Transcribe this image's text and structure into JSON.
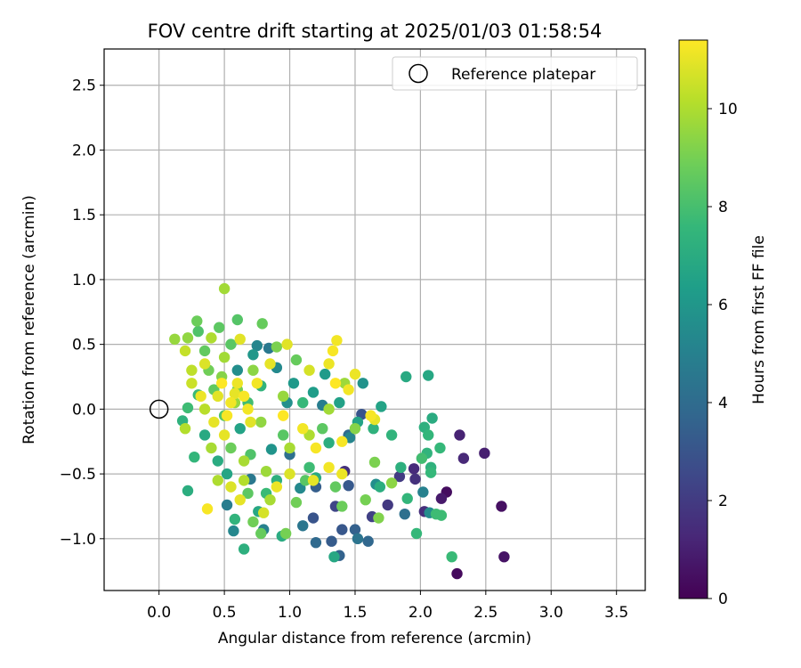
{
  "chart_data": {
    "type": "scatter",
    "title": "FOV centre drift starting at 2025/01/03 01:58:54",
    "xlabel": "Angular distance from reference (arcmin)",
    "ylabel": "Rotation from reference (arcmin)",
    "xlim": [
      -0.42,
      3.72
    ],
    "ylim": [
      -1.4,
      2.78
    ],
    "x_ticks": [
      0.0,
      0.5,
      1.0,
      1.5,
      2.0,
      2.5,
      3.0,
      3.5
    ],
    "x_tick_labels": [
      "0.0",
      "0.5",
      "1.0",
      "1.5",
      "2.0",
      "2.5",
      "3.0",
      "3.5"
    ],
    "y_ticks": [
      -1.0,
      -0.5,
      0.0,
      0.5,
      1.0,
      1.5,
      2.0,
      2.5
    ],
    "y_tick_labels": [
      "−1.0",
      "−0.5",
      "0.0",
      "0.5",
      "1.0",
      "1.5",
      "2.0",
      "2.5"
    ],
    "grid": true,
    "legend": {
      "position": "top-right",
      "entries": [
        "Reference platepar"
      ]
    },
    "reference_point": {
      "x": 0.0,
      "y": 0.0
    },
    "colorbar": {
      "label": "Hours from first FF file",
      "range": [
        0,
        11.4
      ],
      "ticks": [
        0,
        2,
        4,
        6,
        8,
        10
      ],
      "tick_labels": [
        "0",
        "2",
        "4",
        "6",
        "8",
        "10"
      ],
      "colormap": [
        "#440154",
        "#482878",
        "#3e4989",
        "#31688e",
        "#26828e",
        "#1f9e89",
        "#35b779",
        "#6ece58",
        "#b5de2b",
        "#fde725"
      ]
    },
    "series": [
      {
        "color_by": "hours",
        "points": [
          [
            2.28,
            -1.27,
            0.3
          ],
          [
            2.64,
            -1.14,
            0.6
          ],
          [
            2.62,
            -0.75,
            0.5
          ],
          [
            2.2,
            -0.64,
            0.4
          ],
          [
            2.16,
            -0.69,
            0.8
          ],
          [
            2.3,
            -0.2,
            1.1
          ],
          [
            2.49,
            -0.34,
            1.0
          ],
          [
            2.33,
            -0.38,
            1.3
          ],
          [
            1.95,
            -0.46,
            1.4
          ],
          [
            1.96,
            -0.54,
            1.6
          ],
          [
            2.03,
            -0.79,
            1.5
          ],
          [
            1.75,
            -0.74,
            1.9
          ],
          [
            1.84,
            -0.52,
            2.0
          ],
          [
            1.63,
            -0.83,
            2.2
          ],
          [
            1.42,
            -0.48,
            1.6
          ],
          [
            1.35,
            -0.75,
            2.4
          ],
          [
            1.5,
            -0.93,
            3.5
          ],
          [
            1.6,
            -1.02,
            3.8
          ],
          [
            1.4,
            -0.93,
            3.1
          ],
          [
            1.32,
            -1.02,
            3.3
          ],
          [
            1.2,
            -1.03,
            3.9
          ],
          [
            1.38,
            -1.13,
            3.6
          ],
          [
            1.18,
            -0.84,
            3.0
          ],
          [
            1.2,
            -0.6,
            3.4
          ],
          [
            1.45,
            -0.59,
            3.2
          ],
          [
            1.55,
            -0.04,
            3.0
          ],
          [
            1.45,
            -0.2,
            4.0
          ],
          [
            1.1,
            -0.9,
            4.5
          ],
          [
            1.52,
            -1.0,
            4.4
          ],
          [
            1.88,
            -0.81,
            4.2
          ],
          [
            2.02,
            -0.64,
            5.0
          ],
          [
            2.07,
            -0.8,
            5.5
          ],
          [
            1.66,
            -0.58,
            5.6
          ],
          [
            1.46,
            -0.22,
            5.2
          ],
          [
            1.56,
            0.2,
            5.8
          ],
          [
            1.25,
            0.03,
            4.8
          ],
          [
            1.0,
            -0.35,
            4.2
          ],
          [
            0.8,
            -0.93,
            5.0
          ],
          [
            0.57,
            -0.94,
            5.3
          ],
          [
            0.52,
            -0.74,
            4.8
          ],
          [
            0.7,
            -0.54,
            4.6
          ],
          [
            1.08,
            -0.61,
            5.4
          ],
          [
            0.86,
            -0.31,
            5.9
          ],
          [
            0.98,
            0.05,
            5.7
          ],
          [
            0.9,
            0.32,
            5.4
          ],
          [
            0.84,
            0.47,
            4.6
          ],
          [
            0.75,
            0.49,
            5.2
          ],
          [
            0.6,
            0.3,
            5.6
          ],
          [
            0.72,
            0.42,
            6.0
          ],
          [
            1.03,
            0.2,
            6.1
          ],
          [
            1.18,
            0.13,
            6.3
          ],
          [
            1.27,
            0.27,
            6.2
          ],
          [
            1.38,
            0.05,
            6.5
          ],
          [
            1.52,
            -0.1,
            6.6
          ],
          [
            1.89,
            0.25,
            6.9
          ],
          [
            2.06,
            0.26,
            6.8
          ],
          [
            2.09,
            -0.07,
            7.0
          ],
          [
            2.03,
            -0.14,
            7.2
          ],
          [
            2.06,
            -0.2,
            7.5
          ],
          [
            2.05,
            -0.34,
            7.4
          ],
          [
            2.15,
            -0.3,
            7.6
          ],
          [
            2.08,
            -0.45,
            7.3
          ],
          [
            2.08,
            -0.49,
            7.6
          ],
          [
            2.01,
            -0.38,
            7.9
          ],
          [
            1.97,
            -0.96,
            7.6
          ],
          [
            1.9,
            -0.69,
            7.5
          ],
          [
            2.12,
            -0.81,
            7.8
          ],
          [
            2.16,
            -0.82,
            7.8
          ],
          [
            2.24,
            -1.14,
            7.7
          ],
          [
            1.85,
            -0.45,
            7.2
          ],
          [
            1.78,
            -0.2,
            7.4
          ],
          [
            1.69,
            -0.6,
            7.1
          ],
          [
            1.7,
            0.02,
            6.6
          ],
          [
            1.64,
            -0.15,
            7.3
          ],
          [
            1.34,
            -1.14,
            6.8
          ],
          [
            1.2,
            -0.53,
            6.9
          ],
          [
            0.94,
            -0.98,
            7.0
          ],
          [
            0.65,
            -1.08,
            7.2
          ],
          [
            0.22,
            -0.63,
            7.1
          ],
          [
            0.27,
            -0.37,
            7.5
          ],
          [
            0.18,
            -0.09,
            7.3
          ],
          [
            0.22,
            0.01,
            7.8
          ],
          [
            0.3,
            0.11,
            7.7
          ],
          [
            0.35,
            -0.2,
            6.9
          ],
          [
            0.45,
            -0.4,
            7.0
          ],
          [
            0.52,
            -0.5,
            6.7
          ],
          [
            0.58,
            -0.85,
            7.4
          ],
          [
            0.76,
            -0.79,
            6.8
          ],
          [
            0.82,
            -0.65,
            7.7
          ],
          [
            0.9,
            -0.55,
            7.2
          ],
          [
            1.15,
            -0.45,
            7.8
          ],
          [
            1.3,
            -0.26,
            7.1
          ],
          [
            1.1,
            0.05,
            7.6
          ],
          [
            0.78,
            0.18,
            7.4
          ],
          [
            0.68,
            0.05,
            7.9
          ],
          [
            0.62,
            -0.15,
            6.6
          ],
          [
            0.7,
            -0.35,
            8.2
          ],
          [
            0.95,
            -0.2,
            8.4
          ],
          [
            0.6,
            0.69,
            8.3
          ],
          [
            0.35,
            0.45,
            8.6
          ],
          [
            0.3,
            0.6,
            8.2
          ],
          [
            0.29,
            0.68,
            8.8
          ],
          [
            0.46,
            0.63,
            8.5
          ],
          [
            0.79,
            0.66,
            8.7
          ],
          [
            0.55,
            0.5,
            8.4
          ],
          [
            0.38,
            0.3,
            8.9
          ],
          [
            0.42,
            0.15,
            8.6
          ],
          [
            0.5,
            -0.05,
            8.3
          ],
          [
            0.55,
            -0.3,
            8.8
          ],
          [
            0.68,
            -0.65,
            8.5
          ],
          [
            0.72,
            -0.87,
            8.9
          ],
          [
            0.78,
            -0.96,
            8.7
          ],
          [
            0.97,
            -0.96,
            9.0
          ],
          [
            1.05,
            -0.72,
            8.9
          ],
          [
            1.12,
            -0.55,
            8.4
          ],
          [
            1.35,
            -0.6,
            8.6
          ],
          [
            1.4,
            -0.75,
            8.8
          ],
          [
            1.65,
            -0.41,
            9.1
          ],
          [
            1.58,
            -0.7,
            9.0
          ],
          [
            1.78,
            -0.57,
            9.4
          ],
          [
            1.68,
            -0.84,
            9.2
          ],
          [
            1.5,
            -0.15,
            9.3
          ],
          [
            1.25,
            -0.15,
            8.5
          ],
          [
            1.05,
            0.38,
            8.7
          ],
          [
            0.9,
            0.48,
            9.1
          ],
          [
            0.72,
            0.3,
            9.4
          ],
          [
            0.6,
            0.15,
            9.0
          ],
          [
            0.48,
            0.25,
            9.3
          ],
          [
            0.22,
            0.55,
            9.5
          ],
          [
            0.12,
            0.54,
            9.6
          ],
          [
            0.5,
            0.93,
            9.8
          ],
          [
            0.4,
            0.55,
            10.0
          ],
          [
            0.5,
            0.4,
            9.8
          ],
          [
            0.58,
            0.05,
            9.6
          ],
          [
            0.65,
            -0.4,
            9.9
          ],
          [
            0.82,
            -0.48,
            9.7
          ],
          [
            1.0,
            -0.3,
            9.9
          ],
          [
            1.15,
            -0.2,
            10.0
          ],
          [
            1.3,
            0.0,
            9.8
          ],
          [
            1.42,
            0.2,
            9.7
          ],
          [
            0.95,
            0.1,
            9.6
          ],
          [
            0.78,
            -0.1,
            9.5
          ],
          [
            0.85,
            -0.7,
            9.9
          ],
          [
            0.65,
            -0.55,
            10.1
          ],
          [
            0.45,
            -0.55,
            10.0
          ],
          [
            0.4,
            -0.3,
            9.9
          ],
          [
            0.35,
            0.0,
            10.2
          ],
          [
            0.2,
            -0.15,
            10.1
          ],
          [
            0.25,
            0.3,
            10.3
          ],
          [
            0.2,
            0.45,
            10.4
          ],
          [
            0.25,
            0.2,
            10.5
          ],
          [
            0.35,
            0.35,
            10.8
          ],
          [
            0.45,
            0.1,
            10.9
          ],
          [
            0.5,
            -0.2,
            11.0
          ],
          [
            0.6,
            0.2,
            11.1
          ],
          [
            0.55,
            0.05,
            11.2
          ],
          [
            0.65,
            0.1,
            11.3
          ],
          [
            0.7,
            -0.1,
            10.9
          ],
          [
            0.75,
            0.2,
            11.2
          ],
          [
            0.55,
            -0.6,
            10.8
          ],
          [
            0.62,
            -0.7,
            11.0
          ],
          [
            0.37,
            -0.77,
            11.3
          ],
          [
            0.8,
            -0.8,
            10.7
          ],
          [
            0.9,
            -0.6,
            11.1
          ],
          [
            1.0,
            -0.5,
            10.8
          ],
          [
            1.18,
            -0.55,
            11.0
          ],
          [
            1.3,
            -0.45,
            11.2
          ],
          [
            1.4,
            -0.25,
            11.3
          ],
          [
            1.5,
            0.27,
            11.1
          ],
          [
            1.45,
            0.15,
            11.2
          ],
          [
            1.35,
            0.2,
            11.4
          ],
          [
            1.3,
            0.35,
            11.1
          ],
          [
            1.33,
            0.45,
            11.3
          ],
          [
            1.36,
            0.53,
            11.2
          ],
          [
            1.65,
            -0.08,
            11.0
          ],
          [
            1.62,
            -0.05,
            11.3
          ],
          [
            1.4,
            -0.5,
            11.1
          ],
          [
            1.2,
            -0.3,
            11.3
          ],
          [
            1.1,
            -0.15,
            11.2
          ],
          [
            0.95,
            -0.05,
            11.4
          ],
          [
            0.98,
            0.5,
            10.9
          ],
          [
            0.85,
            0.35,
            11.0
          ],
          [
            1.15,
            0.3,
            10.7
          ],
          [
            0.62,
            0.54,
            10.9
          ],
          [
            0.48,
            0.2,
            11.4
          ],
          [
            0.52,
            -0.05,
            11.3
          ],
          [
            0.58,
            0.12,
            11.0
          ],
          [
            0.68,
            0.0,
            11.2
          ],
          [
            0.42,
            -0.1,
            11.0
          ],
          [
            0.32,
            0.1,
            11.1
          ]
        ]
      }
    ]
  }
}
